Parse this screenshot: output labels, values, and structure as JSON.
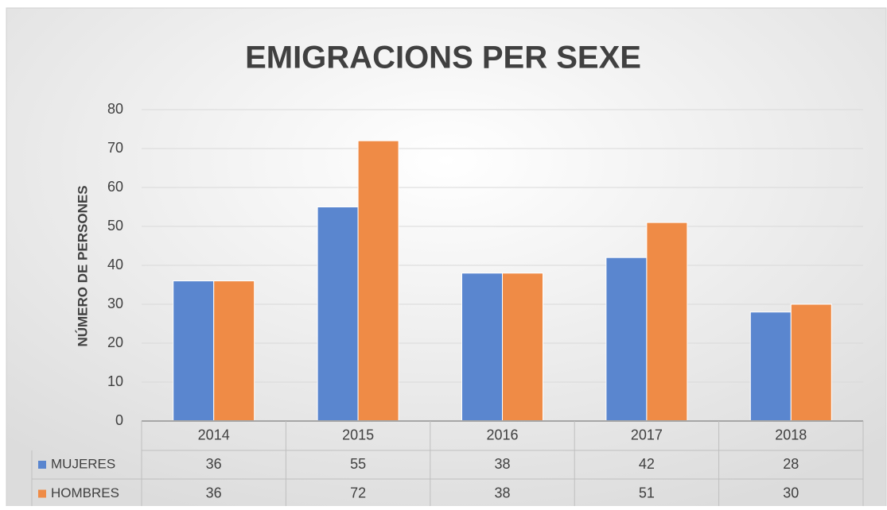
{
  "chart_data": {
    "type": "bar",
    "title": "EMIGRACIONS PER SEXE",
    "y_label": "NÚMERO DE PERSONES",
    "categories": [
      "2014",
      "2015",
      "2016",
      "2017",
      "2018"
    ],
    "series": [
      {
        "name": "MUJERES",
        "color": "#5a86cf",
        "values": [
          36,
          55,
          38,
          42,
          28
        ]
      },
      {
        "name": "HOMBRES",
        "color": "#ef8b46",
        "values": [
          36,
          72,
          38,
          51,
          30
        ]
      }
    ],
    "ylim": [
      0,
      80
    ],
    "yticks": [
      0,
      10,
      20,
      30,
      40,
      50,
      60,
      70,
      80
    ],
    "grid": true,
    "data_table": true
  }
}
